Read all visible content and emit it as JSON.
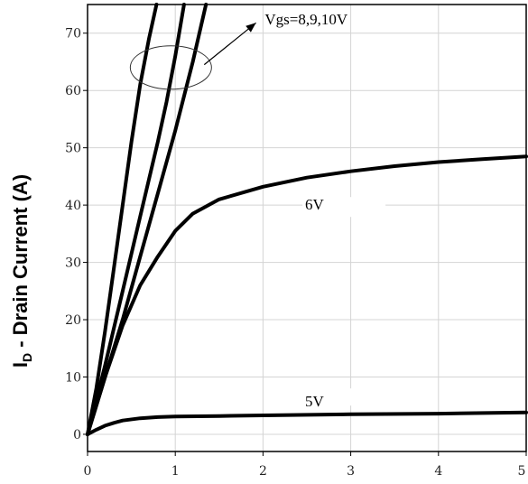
{
  "chart_data": {
    "type": "line",
    "title": "",
    "xlabel": "",
    "ylabel": {
      "main": "I",
      "sub": "D",
      "rest": " - Drain Current (A)"
    },
    "xlim": [
      0,
      5
    ],
    "ylim": [
      -3,
      75
    ],
    "x_ticks": [
      0,
      1,
      2,
      3,
      4,
      5
    ],
    "y_ticks": [
      0,
      10,
      20,
      30,
      40,
      50,
      60,
      70
    ],
    "grid": true,
    "series": [
      {
        "name": "Vgs=10V",
        "x": [
          0,
          0.1,
          0.2,
          0.3,
          0.4,
          0.5,
          0.6,
          0.7,
          0.8
        ],
        "y": [
          0,
          8,
          18,
          29,
          40,
          51,
          61,
          69,
          76
        ]
      },
      {
        "name": "Vgs=9V",
        "x": [
          0,
          0.2,
          0.4,
          0.6,
          0.8,
          0.9,
          1.0,
          1.1
        ],
        "y": [
          0,
          12,
          25,
          38,
          51,
          58,
          66,
          75
        ]
      },
      {
        "name": "Vgs=8V",
        "x": [
          0,
          0.2,
          0.4,
          0.6,
          0.8,
          1.0,
          1.2,
          1.35
        ],
        "y": [
          0,
          10,
          20,
          31,
          42,
          53,
          65,
          75
        ]
      },
      {
        "name": "6V",
        "x": [
          0,
          0.2,
          0.4,
          0.6,
          0.8,
          1.0,
          1.2,
          1.5,
          2.0,
          2.5,
          3.0,
          3.5,
          4.0,
          4.5,
          5.0
        ],
        "y": [
          0,
          10,
          19,
          26,
          31,
          35.5,
          38.5,
          41,
          43.2,
          44.8,
          45.9,
          46.8,
          47.5,
          48.0,
          48.5
        ]
      },
      {
        "name": "5V",
        "x": [
          0,
          0.1,
          0.2,
          0.3,
          0.4,
          0.6,
          0.8,
          1.0,
          1.5,
          2.0,
          3.0,
          4.0,
          5.0
        ],
        "y": [
          0,
          0.8,
          1.5,
          2.0,
          2.4,
          2.8,
          3.0,
          3.1,
          3.2,
          3.3,
          3.5,
          3.6,
          3.8
        ]
      }
    ],
    "annotations": [
      {
        "id": "vgs-group",
        "text": "Vgs=8,9,10V"
      },
      {
        "id": "label-6v",
        "text": "6V"
      },
      {
        "id": "label-5v",
        "text": "5V"
      }
    ]
  }
}
